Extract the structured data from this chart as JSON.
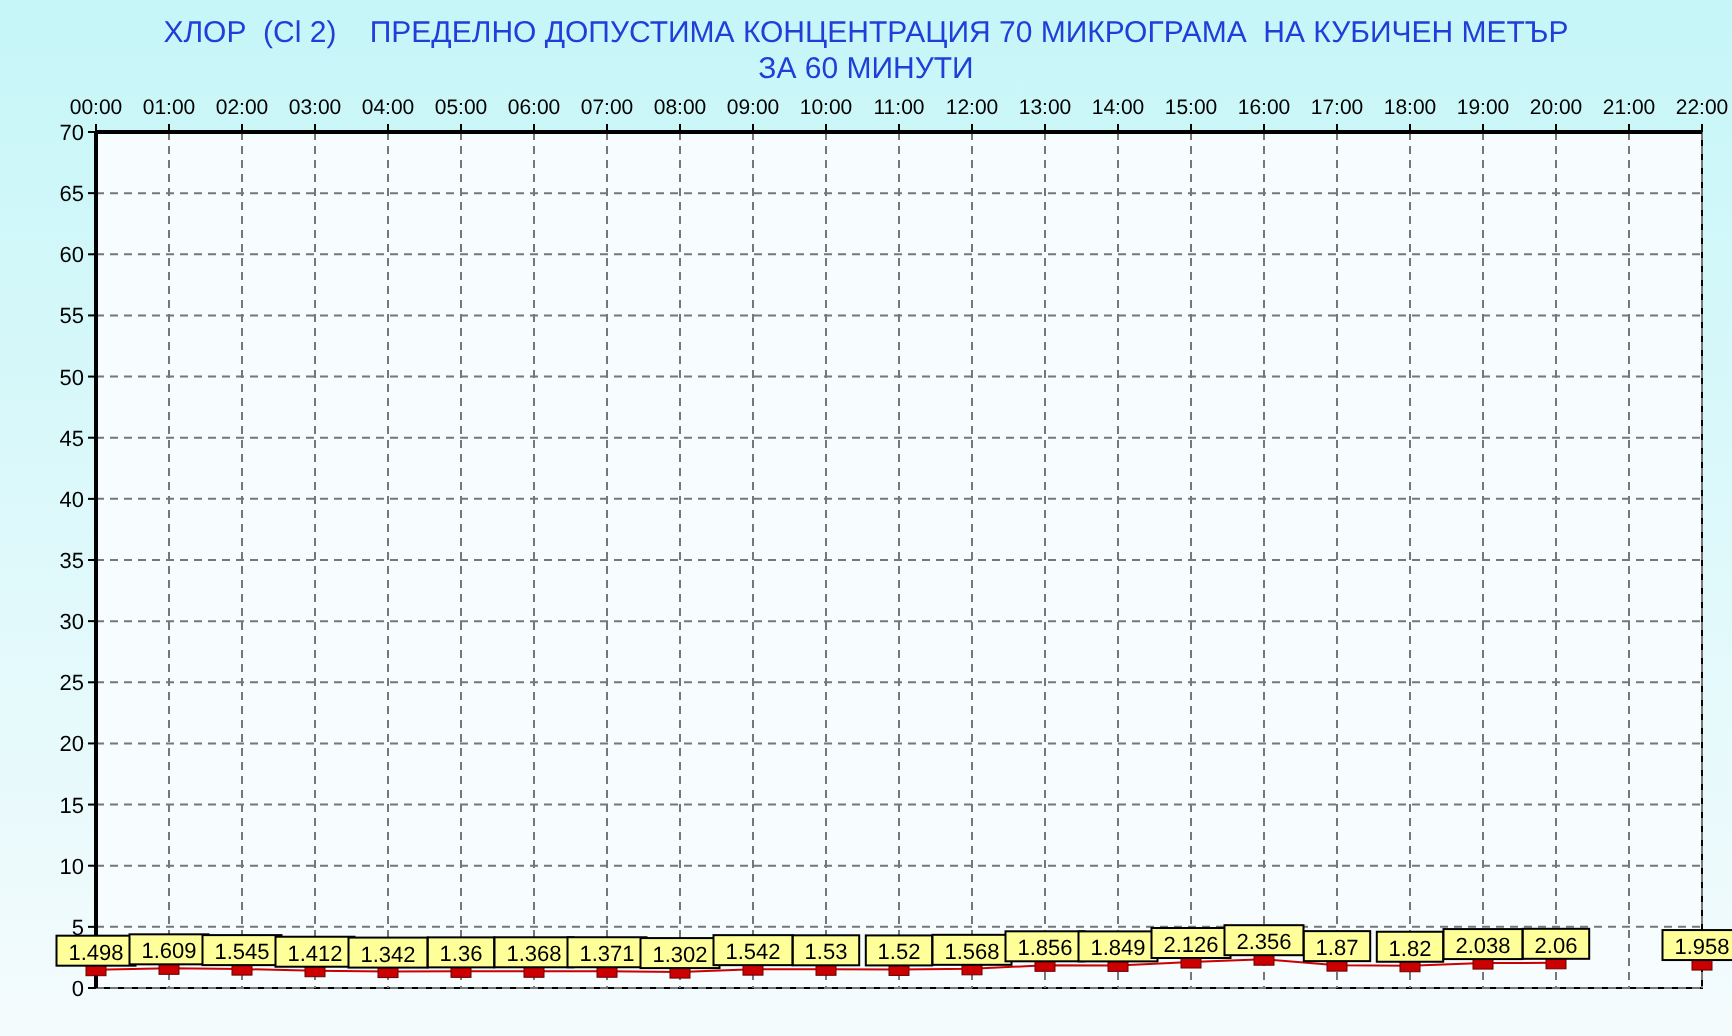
{
  "chart_data": {
    "type": "line",
    "title": "ХЛОР  (Cl 2)    ПРЕДЕЛНО ДОПУСТИМА КОНЦЕНТРАЦИЯ 70 МИКРОГРАМА  НА КУБИЧЕН МЕТЪР",
    "subtitle": "ЗА 60 МИНУТИ",
    "categories": [
      "00:00",
      "01:00",
      "02:00",
      "03:00",
      "04:00",
      "05:00",
      "06:00",
      "07:00",
      "08:00",
      "09:00",
      "10:00",
      "11:00",
      "12:00",
      "13:00",
      "14:00",
      "15:00",
      "16:00",
      "17:00",
      "18:00",
      "19:00",
      "20:00",
      "21:00",
      "22:00"
    ],
    "series": [
      {
        "color": "#cc0000",
        "values": [
          1.498,
          1.609,
          1.545,
          1.412,
          1.342,
          1.36,
          1.368,
          1.371,
          1.302,
          1.542,
          1.53,
          1.52,
          1.568,
          1.856,
          1.849,
          2.126,
          2.356,
          1.87,
          1.82,
          2.038,
          2.06,
          null,
          1.958
        ]
      }
    ],
    "ylim": [
      0,
      70
    ],
    "yticks": [
      0,
      5,
      10,
      15,
      20,
      25,
      30,
      35,
      40,
      45,
      50,
      55,
      60,
      65,
      70
    ],
    "grid": true,
    "marker": "square",
    "data_labels": true
  }
}
